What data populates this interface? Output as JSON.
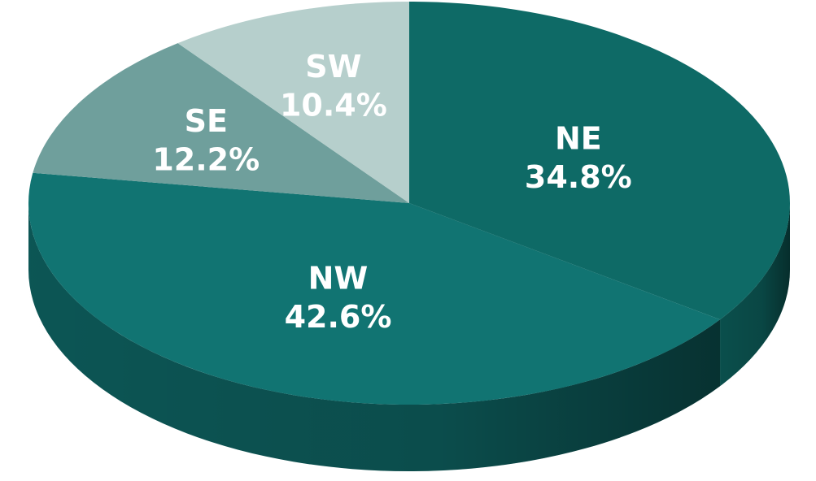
{
  "chart_data": {
    "type": "pie",
    "categories": [
      "NE",
      "NW",
      "SE",
      "SW"
    ],
    "values": [
      34.8,
      42.6,
      12.2,
      10.4
    ],
    "value_labels": [
      "34.8%",
      "42.6%",
      "12.2%",
      "10.4%"
    ],
    "colors": [
      "#0e6a66",
      "#117472",
      "#6f9f9c",
      "#b6cfcc"
    ]
  }
}
